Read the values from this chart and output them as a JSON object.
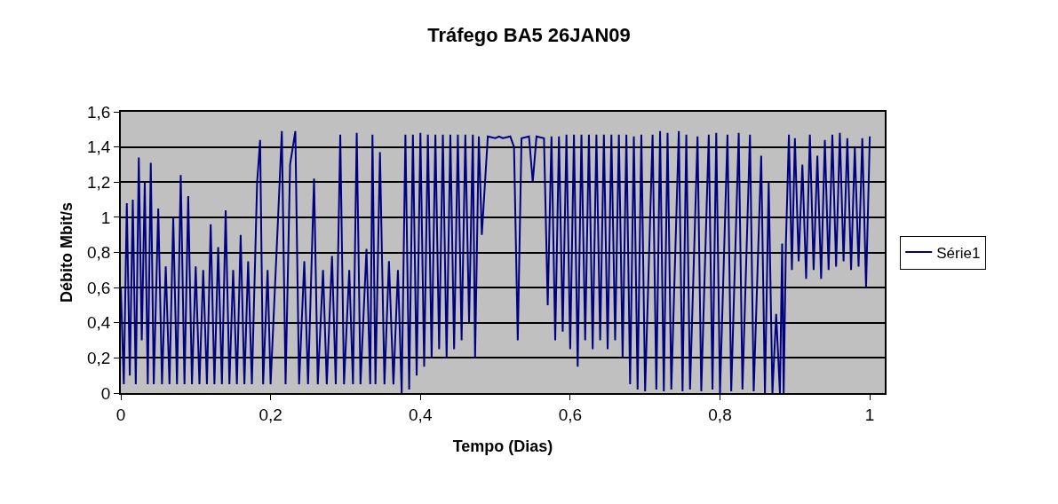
{
  "chart_data": {
    "type": "line",
    "title": "Tráfego BA5 26JAN09",
    "xlabel": "Tempo (Dias)",
    "ylabel": "Débito Mbit/s",
    "xlim": [
      0,
      1.02
    ],
    "xticks": [
      0,
      {
        "value": 0.2,
        "label": "0,2"
      },
      {
        "value": 0.4,
        "label": "0,4"
      },
      {
        "value": 0.6,
        "label": "0,6"
      },
      {
        "value": 0.8,
        "label": "0,8"
      },
      1
    ],
    "ylim": [
      0,
      1.6
    ],
    "yticks": [
      0,
      {
        "value": 0.2,
        "label": "0,2"
      },
      {
        "value": 0.4,
        "label": "0,4"
      },
      {
        "value": 0.6,
        "label": "0,6"
      },
      {
        "value": 0.8,
        "label": "0,8"
      },
      1,
      {
        "value": 1.2,
        "label": "1,2"
      },
      {
        "value": 1.4,
        "label": "1,4"
      },
      {
        "value": 1.6,
        "label": "1,6"
      }
    ],
    "grid": "y",
    "legend": "right",
    "marker": "none",
    "line_style": "solid",
    "series": [
      {
        "name": "Série1",
        "color": "#000080",
        "x": [
          0,
          0.004,
          0.008,
          0.012,
          0.016,
          0.02,
          0.024,
          0.028,
          0.032,
          0.036,
          0.04,
          0.044,
          0.05,
          0.055,
          0.06,
          0.065,
          0.07,
          0.075,
          0.08,
          0.085,
          0.09,
          0.095,
          0.1,
          0.105,
          0.11,
          0.115,
          0.12,
          0.125,
          0.13,
          0.135,
          0.14,
          0.145,
          0.15,
          0.155,
          0.16,
          0.165,
          0.17,
          0.175,
          0.182,
          0.186,
          0.19,
          0.196,
          0.2,
          0.21,
          0.215,
          0.22,
          0.226,
          0.233,
          0.238,
          0.245,
          0.25,
          0.258,
          0.263,
          0.27,
          0.275,
          0.282,
          0.287,
          0.293,
          0.298,
          0.305,
          0.31,
          0.315,
          0.32,
          0.328,
          0.333,
          0.336,
          0.34,
          0.346,
          0.352,
          0.358,
          0.364,
          0.37,
          0.375,
          0.38,
          0.385,
          0.39,
          0.395,
          0.4,
          0.405,
          0.41,
          0.415,
          0.42,
          0.425,
          0.43,
          0.435,
          0.44,
          0.445,
          0.45,
          0.455,
          0.46,
          0.465,
          0.47,
          0.473,
          0.478,
          0.482,
          0.49,
          0.5,
          0.505,
          0.51,
          0.52,
          0.525,
          0.53,
          0.535,
          0.545,
          0.55,
          0.555,
          0.565,
          0.57,
          0.575,
          0.58,
          0.585,
          0.59,
          0.595,
          0.6,
          0.605,
          0.61,
          0.615,
          0.62,
          0.625,
          0.63,
          0.635,
          0.64,
          0.645,
          0.65,
          0.655,
          0.66,
          0.665,
          0.67,
          0.675,
          0.68,
          0.685,
          0.69,
          0.695,
          0.7,
          0.71,
          0.715,
          0.72,
          0.725,
          0.73,
          0.735,
          0.745,
          0.75,
          0.755,
          0.76,
          0.77,
          0.775,
          0.785,
          0.79,
          0.795,
          0.8,
          0.81,
          0.815,
          0.825,
          0.83,
          0.84,
          0.845,
          0.855,
          0.86,
          0.865,
          0.87,
          0.875,
          0.88,
          0.883,
          0.885,
          0.888,
          0.892,
          0.896,
          0.9,
          0.905,
          0.91,
          0.915,
          0.92,
          0.925,
          0.93,
          0.935,
          0.94,
          0.945,
          0.95,
          0.955,
          0.96,
          0.965,
          0.97,
          0.975,
          0.98,
          0.985,
          0.99,
          0.995,
          1.0
        ],
        "values": [
          0.6,
          0.05,
          1.08,
          0.1,
          1.1,
          0.05,
          1.34,
          0.3,
          1.2,
          0.05,
          1.31,
          0.05,
          1.05,
          0.05,
          0.72,
          0.05,
          1.0,
          0.05,
          1.24,
          0.05,
          1.12,
          0.05,
          0.72,
          0.05,
          0.7,
          0.05,
          0.96,
          0.05,
          0.83,
          0.05,
          1.04,
          0.05,
          0.7,
          0.05,
          0.9,
          0.05,
          0.75,
          0.05,
          1.2,
          1.44,
          0.05,
          0.7,
          0.05,
          1.0,
          1.49,
          0.05,
          1.3,
          1.49,
          0.05,
          0.75,
          0.05,
          1.22,
          0.05,
          0.7,
          0.05,
          0.78,
          0.05,
          1.47,
          0.05,
          0.7,
          0.05,
          1.48,
          0.05,
          0.82,
          0.05,
          1.47,
          0.05,
          1.37,
          0.05,
          0.75,
          0.05,
          0.7,
          0.0,
          1.47,
          0.02,
          1.47,
          0.1,
          1.48,
          0.15,
          1.47,
          0.2,
          1.47,
          0.25,
          1.47,
          0.2,
          1.47,
          0.25,
          1.47,
          0.3,
          1.47,
          0.4,
          1.47,
          0.2,
          1.46,
          0.9,
          1.46,
          1.45,
          1.46,
          1.45,
          1.46,
          1.4,
          0.3,
          1.45,
          1.46,
          1.2,
          1.46,
          1.45,
          0.5,
          1.46,
          0.3,
          1.46,
          0.35,
          1.47,
          0.25,
          1.47,
          0.15,
          1.47,
          0.3,
          1.47,
          0.25,
          1.47,
          0.3,
          1.47,
          0.25,
          1.47,
          0.3,
          1.47,
          0.2,
          1.47,
          0.05,
          1.46,
          0.02,
          1.47,
          0.01,
          1.47,
          0.02,
          1.49,
          0.01,
          1.48,
          0.02,
          1.49,
          0.01,
          1.47,
          0.02,
          1.46,
          0.01,
          1.47,
          0.02,
          1.48,
          0.0,
          1.47,
          0.01,
          1.48,
          0.02,
          1.47,
          0.01,
          1.35,
          0.0,
          1.2,
          0.0,
          0.45,
          0.0,
          0.85,
          0.0,
          0.85,
          1.47,
          0.7,
          1.45,
          0.75,
          1.3,
          0.65,
          1.47,
          0.7,
          1.35,
          0.65,
          1.44,
          0.7,
          1.47,
          0.72,
          1.48,
          0.75,
          1.45,
          0.7,
          1.4,
          0.72,
          1.45,
          0.6,
          1.46
        ]
      }
    ]
  }
}
